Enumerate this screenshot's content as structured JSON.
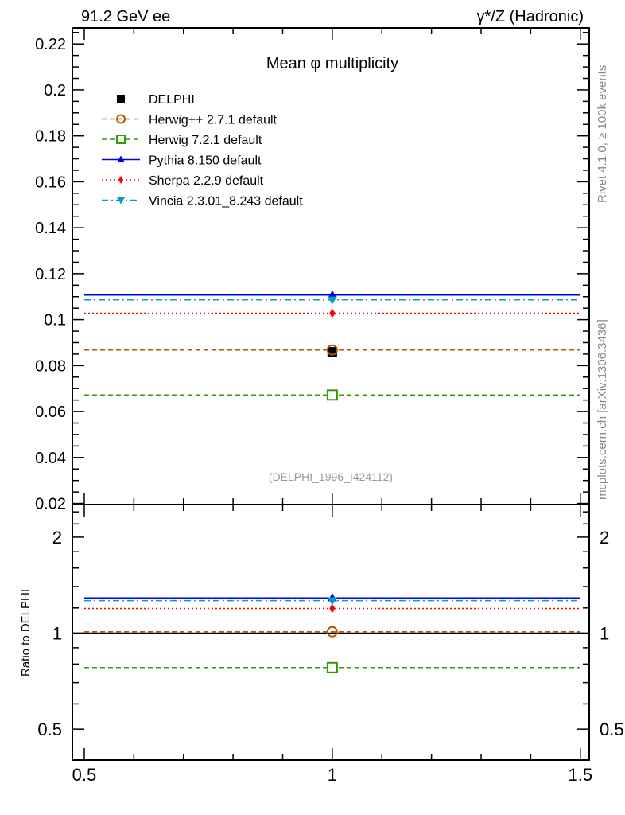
{
  "header": {
    "left": "91.2 GeV ee",
    "right": "γ*/Z (Hadronic)"
  },
  "side_labels": {
    "top": "Rivet 4.1.0, ≥ 100k events",
    "bottom": "mcplots.cern.ch [arXiv:1306.3436]"
  },
  "watermark": "(DELPHI_1996_I424112)",
  "chart_data": [
    {
      "type": "scatter",
      "title": "Mean φ multiplicity",
      "xlabel": "",
      "ylabel": "",
      "xlim": [
        0.476,
        1.518
      ],
      "ylim": [
        0.0195,
        0.227
      ],
      "yticks": [
        0.02,
        0.04,
        0.06,
        0.08,
        0.1,
        0.12,
        0.14,
        0.16,
        0.18,
        0.2,
        0.22
      ],
      "ytick_labels": [
        "0.02",
        "0.04",
        "0.06",
        "0.08",
        "0.1",
        "0.12",
        "0.14",
        "0.16",
        "0.18",
        "0.2",
        "0.22"
      ],
      "legend_position": "top-left",
      "series": [
        {
          "name": "DELPHI",
          "x": [
            1.0
          ],
          "values": [
            0.086
          ],
          "color": "#000000",
          "marker": "square",
          "line": "none"
        },
        {
          "name": "Herwig++ 2.7.1 default",
          "x": [
            1.0
          ],
          "values": [
            0.0868
          ],
          "color": "#b35900",
          "marker": "open-circle",
          "line": "dashed"
        },
        {
          "name": "Herwig 7.2.1 default",
          "x": [
            1.0
          ],
          "values": [
            0.0672
          ],
          "color": "#339900",
          "marker": "open-square",
          "line": "dashed"
        },
        {
          "name": "Pythia 8.150 default",
          "x": [
            1.0
          ],
          "values": [
            0.1107
          ],
          "color": "#0000ee",
          "marker": "triangle-up",
          "line": "solid"
        },
        {
          "name": "Sherpa 2.2.9 default",
          "x": [
            1.0
          ],
          "values": [
            0.1028
          ],
          "color": "#ff0000",
          "marker": "diamond",
          "line": "dotted"
        },
        {
          "name": "Vincia 2.3.01_8.243 default",
          "x": [
            1.0
          ],
          "values": [
            0.1086
          ],
          "color": "#00a0c0",
          "marker": "triangle-down",
          "line": "dashdot"
        }
      ]
    },
    {
      "type": "scatter",
      "title": "",
      "xlabel": "",
      "ylabel": "Ratio to DELPHI",
      "xlim": [
        0.476,
        1.518
      ],
      "ylim": [
        0.4,
        2.53
      ],
      "yscale": "log",
      "yticks": [
        0.5,
        1,
        2
      ],
      "ytick_labels": [
        "0.5",
        "1",
        "2"
      ],
      "xticks": [
        0.5,
        1,
        1.5
      ],
      "xtick_labels": [
        "0.5",
        "1",
        "1.5"
      ],
      "series": [
        {
          "name": "Herwig++ 2.7.1 default",
          "x": [
            1.0
          ],
          "values": [
            1.01
          ]
        },
        {
          "name": "Herwig 7.2.1 default",
          "x": [
            1.0
          ],
          "values": [
            0.78
          ]
        },
        {
          "name": "Pythia 8.150 default",
          "x": [
            1.0
          ],
          "values": [
            1.29
          ]
        },
        {
          "name": "Sherpa 2.2.9 default",
          "x": [
            1.0
          ],
          "values": [
            1.195
          ]
        },
        {
          "name": "Vincia 2.3.01_8.243 default",
          "x": [
            1.0
          ],
          "values": [
            1.265
          ]
        }
      ]
    }
  ]
}
